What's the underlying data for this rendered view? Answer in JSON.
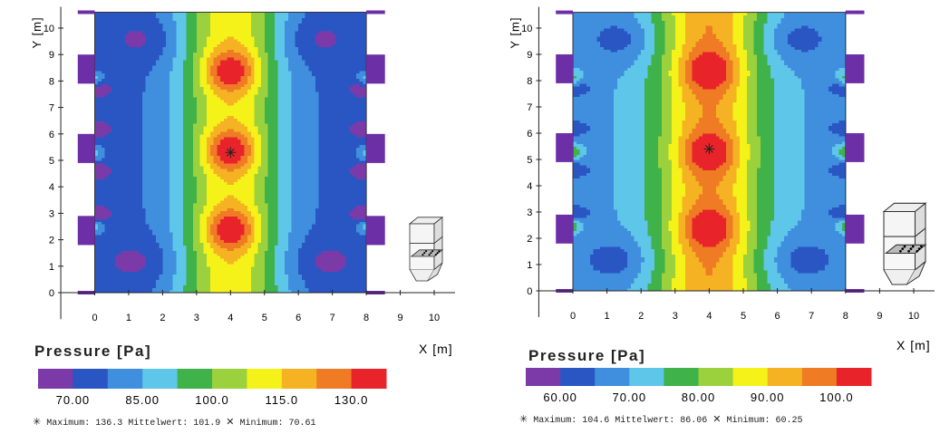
{
  "colors": {
    "palette": [
      "#7b3aa8",
      "#2a56c4",
      "#3f8fde",
      "#5ec6e8",
      "#3fb24a",
      "#9bd13c",
      "#f5f21a",
      "#f5b323",
      "#ef7b24",
      "#e8242a"
    ],
    "axis": "#222222",
    "hopper": "#6d2fa6"
  },
  "chart_data": [
    {
      "type": "heatmap",
      "title": "Pressure [Pa]",
      "xlabel": "X [m]",
      "ylabel": "Y [m]",
      "xlim": [
        -1,
        10.5
      ],
      "ylim": [
        -1,
        10.5
      ],
      "x_ticks": [
        "0",
        "1",
        "2",
        "3",
        "4",
        "5",
        "6",
        "7",
        "8",
        "9",
        "10"
      ],
      "y_ticks": [
        "0",
        "1",
        "2",
        "3",
        "4",
        "5",
        "6",
        "7",
        "8",
        "9",
        "10"
      ],
      "domain": {
        "x": [
          0,
          8
        ],
        "y": [
          0,
          10.6
        ]
      },
      "colorbar_ticks": [
        "70.00",
        "85.00",
        "100.0",
        "115.0",
        "130.0"
      ],
      "colorbar_min": 70,
      "colorbar_max": 136,
      "field": {
        "base": 81,
        "center_gain": 34,
        "peak_gain": 22,
        "peaks_y": [
          2.4,
          5.4,
          8.4
        ],
        "peak_x": 4,
        "wall_dip": 11,
        "dips_y": [
          3.0,
          4.6,
          6.2,
          7.7
        ],
        "wall_bump": 12,
        "bumps_y": [
          2.5,
          5.3,
          8.1
        ]
      },
      "maximum_point": {
        "x": 4.0,
        "y": 5.3
      },
      "stats": {
        "max_label": "Maximum:",
        "max_value": "136.3",
        "mean_label": "Mittelwert:",
        "mean_value": "101.9",
        "min_label": "Minimum:",
        "min_value": "70.61"
      }
    },
    {
      "type": "heatmap",
      "title": "Pressure [Pa]",
      "xlabel": "X [m]",
      "ylabel": "Y [m]",
      "xlim": [
        -1,
        10.5
      ],
      "ylim": [
        -1,
        10.5
      ],
      "x_ticks": [
        "0",
        "1",
        "2",
        "3",
        "4",
        "5",
        "6",
        "7",
        "8",
        "9",
        "10"
      ],
      "y_ticks": [
        "0",
        "1",
        "2",
        "3",
        "4",
        "5",
        "6",
        "7",
        "8",
        "9",
        "10"
      ],
      "domain": {
        "x": [
          0,
          8
        ],
        "y": [
          0,
          10.6
        ]
      },
      "colorbar_ticks": [
        "60.00",
        "70.00",
        "80.00",
        "90.00",
        "100.0"
      ],
      "colorbar_min": 55,
      "colorbar_max": 105,
      "field": {
        "base": 69,
        "center_gain": 26,
        "peak_gain": 13,
        "peaks_y": [
          2.4,
          5.3,
          8.4
        ],
        "peak_x": 4,
        "wall_dip": 9,
        "dips_y": [
          3.0,
          4.6,
          6.2,
          7.7
        ],
        "wall_bump": 9,
        "bumps_y": [
          2.5,
          5.3,
          8.1
        ]
      },
      "maximum_point": {
        "x": 4.0,
        "y": 5.4
      },
      "stats": {
        "max_label": "Maximum:",
        "max_value": "104.6",
        "mean_label": "Mittelwert:",
        "mean_value": "86.06",
        "min_label": "Minimum:",
        "min_value": "60.25"
      }
    }
  ]
}
